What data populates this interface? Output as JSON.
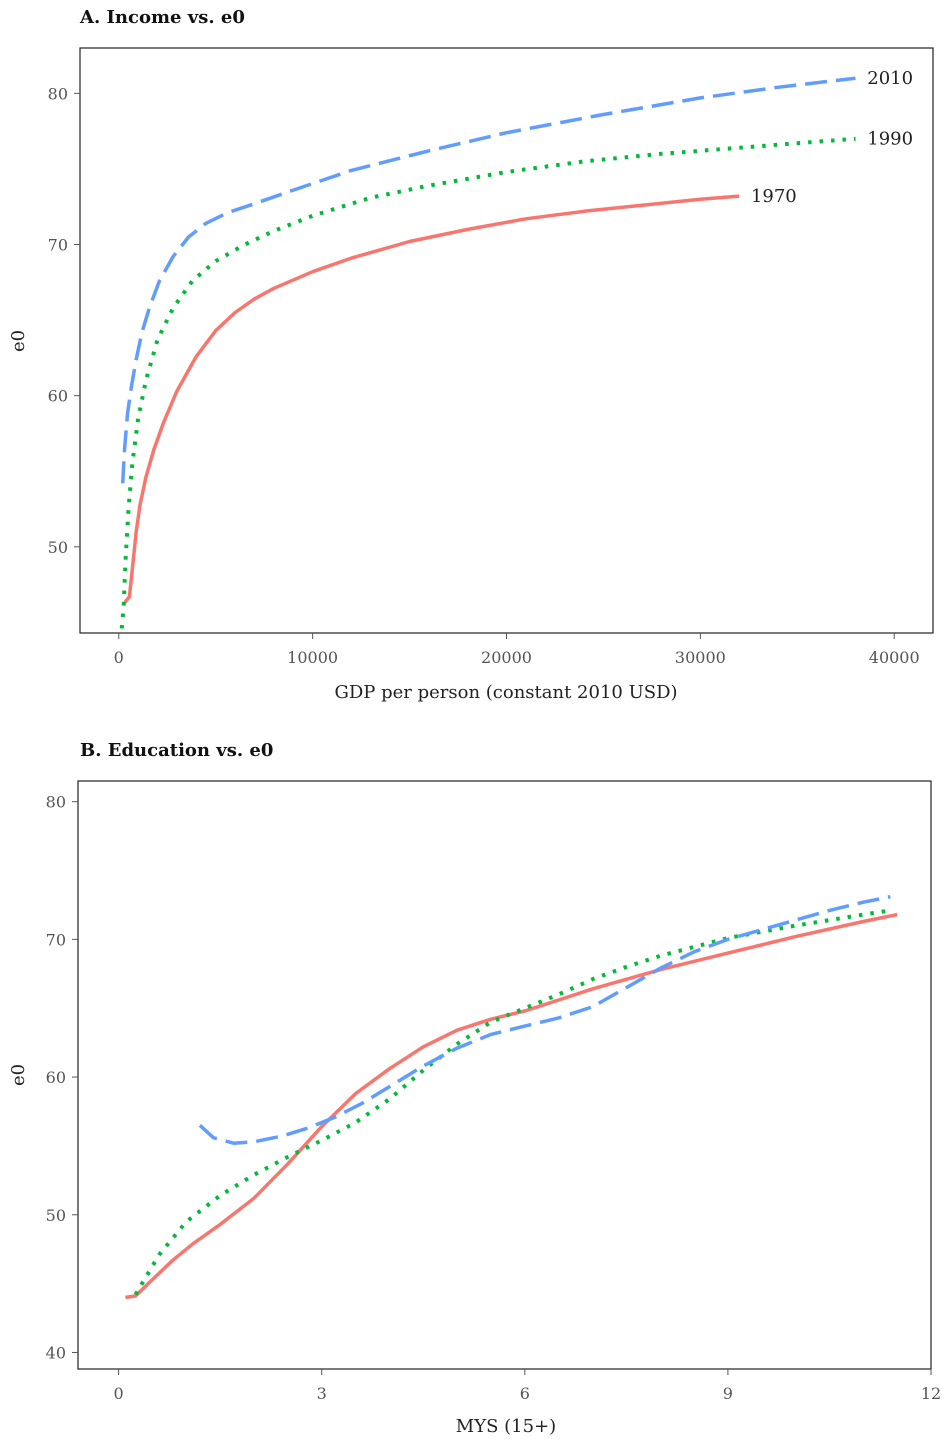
{
  "chart_data": [
    {
      "type": "line",
      "title": "A. Income vs. e0",
      "xlabel": "GDP per person (constant 2010 USD)",
      "ylabel": "e0",
      "xlim": [
        -2000,
        42000
      ],
      "ylim": [
        44.3,
        83
      ],
      "x_ticks": [
        0,
        10000,
        20000,
        30000,
        40000
      ],
      "y_ticks": [
        50,
        60,
        70,
        80
      ],
      "grid": false,
      "legend": "none",
      "series": [
        {
          "name": "1970",
          "color": "#F8766D",
          "style": "solid",
          "label_x": 32300,
          "label_y": 73.2,
          "x": [
            300,
            550,
            700,
            900,
            1100,
            1400,
            1800,
            2300,
            3000,
            4000,
            5000,
            6000,
            7000,
            8000,
            10000,
            12000,
            15000,
            18000,
            21000,
            24000,
            27000,
            30000,
            32000
          ],
          "y": [
            46.3,
            46.7,
            48.5,
            51.0,
            52.8,
            54.6,
            56.4,
            58.2,
            60.3,
            62.6,
            64.3,
            65.5,
            66.4,
            67.1,
            68.2,
            69.1,
            70.2,
            71.0,
            71.7,
            72.2,
            72.6,
            73.0,
            73.2
          ]
        },
        {
          "name": "1990",
          "color": "#00BA38",
          "style": "dotted",
          "label_x": 38300,
          "label_y": 77.0,
          "x": [
            150,
            250,
            350,
            500,
            700,
            1000,
            1400,
            2000,
            2800,
            3800,
            5000,
            6500,
            8000,
            10000,
            13000,
            16000,
            20000,
            24000,
            28000,
            32000,
            35000,
            38000
          ],
          "y": [
            44.6,
            46.0,
            49.2,
            52.5,
            55.5,
            58.5,
            61.0,
            63.7,
            65.8,
            67.6,
            68.9,
            70.0,
            70.9,
            71.9,
            73.1,
            73.9,
            74.8,
            75.5,
            76.0,
            76.4,
            76.7,
            77.0
          ]
        },
        {
          "name": "2010",
          "color": "#619CFF",
          "style": "dashed",
          "label_x": 38300,
          "label_y": 81.0,
          "x": [
            200,
            300,
            450,
            650,
            900,
            1200,
            1600,
            2100,
            2800,
            3600,
            4500,
            5600,
            7000,
            9000,
            12000,
            16000,
            20000,
            25000,
            30000,
            34000,
            38000
          ],
          "y": [
            54.2,
            56.5,
            58.8,
            60.6,
            62.4,
            64.2,
            65.9,
            67.6,
            69.2,
            70.5,
            71.4,
            72.1,
            72.7,
            73.6,
            74.9,
            76.2,
            77.4,
            78.6,
            79.7,
            80.4,
            81.0
          ]
        }
      ]
    },
    {
      "type": "line",
      "title": "B. Education vs. e0",
      "xlabel": "MYS (15+)",
      "ylabel": "e0",
      "xlim": [
        -0.6,
        12.0
      ],
      "ylim": [
        38.8,
        81.5
      ],
      "x_ticks": [
        0,
        3,
        6,
        9,
        12
      ],
      "y_ticks": [
        40,
        50,
        60,
        70,
        80
      ],
      "grid": false,
      "legend": "none",
      "series": [
        {
          "name": "1970",
          "color": "#F8766D",
          "style": "solid",
          "x": [
            0.1,
            0.25,
            0.5,
            0.8,
            1.1,
            1.5,
            2.0,
            2.5,
            3.0,
            3.5,
            4.0,
            4.5,
            5.0,
            5.5,
            6.0,
            6.5,
            7.0,
            7.5,
            8.0,
            9.0,
            10.0,
            11.0,
            11.5
          ],
          "y": [
            44.0,
            44.1,
            45.3,
            46.7,
            47.9,
            49.3,
            51.2,
            53.7,
            56.4,
            58.8,
            60.6,
            62.2,
            63.4,
            64.2,
            64.8,
            65.6,
            66.4,
            67.1,
            67.8,
            69.0,
            70.2,
            71.3,
            71.8
          ]
        },
        {
          "name": "1990",
          "color": "#00BA38",
          "style": "dotted",
          "x": [
            0.25,
            0.6,
            1.0,
            1.5,
            2.0,
            2.5,
            3.0,
            3.5,
            4.0,
            4.5,
            5.0,
            5.5,
            6.0,
            6.5,
            7.0,
            7.5,
            8.0,
            9.0,
            10.0,
            11.0,
            11.4
          ],
          "y": [
            44.2,
            47.1,
            49.5,
            51.4,
            52.9,
            54.2,
            55.4,
            56.7,
            58.4,
            60.5,
            62.4,
            64.0,
            65.0,
            66.0,
            67.1,
            68.0,
            68.8,
            70.1,
            71.0,
            71.8,
            72.1
          ]
        },
        {
          "name": "2010",
          "color": "#619CFF",
          "style": "dashed",
          "x": [
            1.2,
            1.4,
            1.7,
            2.0,
            2.4,
            2.8,
            3.2,
            3.6,
            4.0,
            4.5,
            5.0,
            5.5,
            6.0,
            6.5,
            7.0,
            7.5,
            8.0,
            8.5,
            9.0,
            9.5,
            10.0,
            10.5,
            11.0,
            11.4
          ],
          "y": [
            56.5,
            55.6,
            55.2,
            55.3,
            55.7,
            56.3,
            57.1,
            58.1,
            59.3,
            60.8,
            62.1,
            63.1,
            63.7,
            64.3,
            65.1,
            66.5,
            67.9,
            69.1,
            70.0,
            70.7,
            71.4,
            72.1,
            72.7,
            73.1
          ]
        }
      ]
    }
  ]
}
